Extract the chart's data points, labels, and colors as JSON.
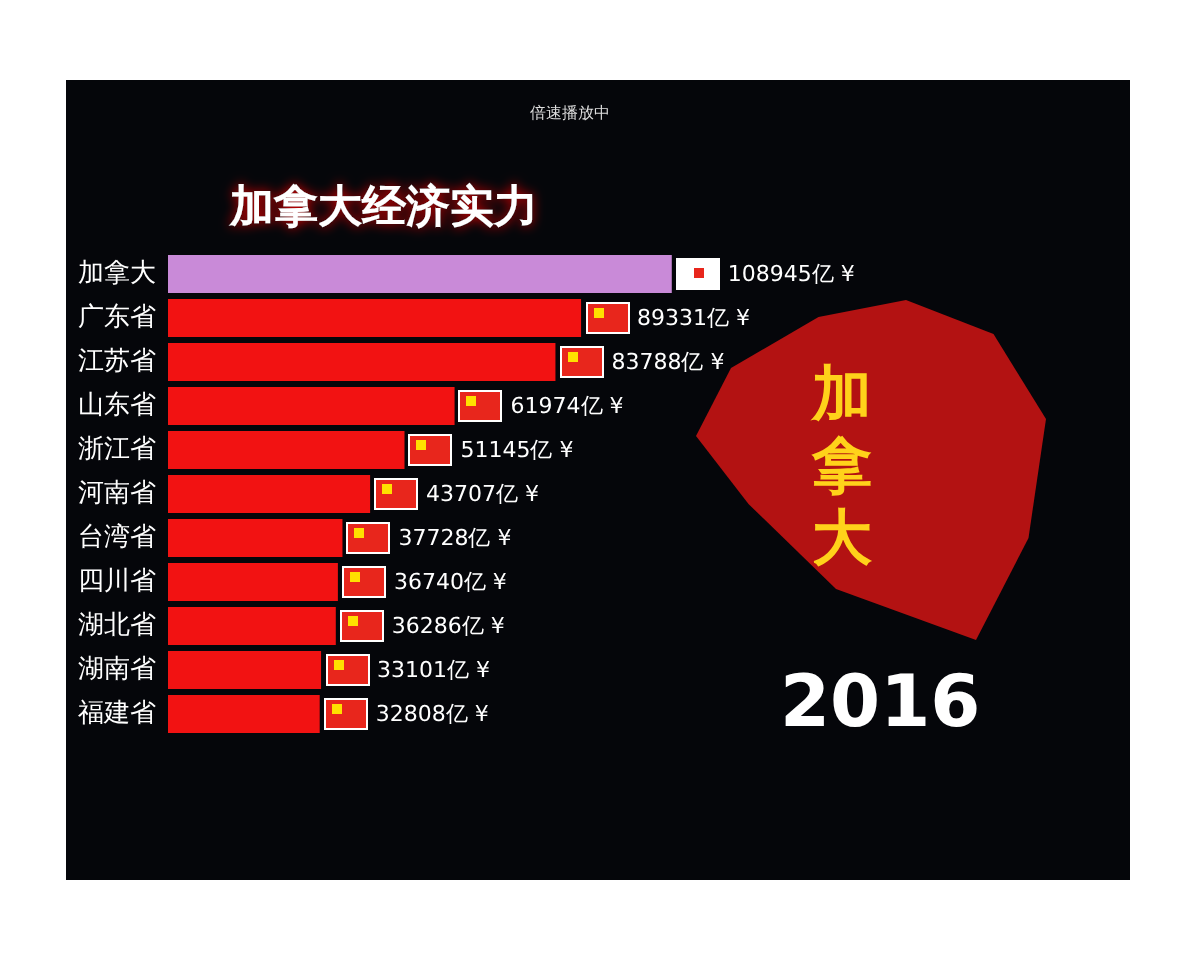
{
  "chart_data": {
    "type": "bar",
    "orientation": "horizontal",
    "title": "加拿大经济实力",
    "categories": [
      "加拿大",
      "广东省",
      "江苏省",
      "山东省",
      "浙江省",
      "河南省",
      "台湾省",
      "四川省",
      "湖北省",
      "湖南省",
      "福建省"
    ],
    "values": [
      108945,
      89331,
      83788,
      61974,
      51145,
      43707,
      37728,
      36740,
      36286,
      33101,
      32808
    ],
    "value_labels": [
      "108945亿 ¥",
      "89331亿 ¥",
      "83788亿 ¥",
      "61974亿 ¥",
      "51145亿 ¥",
      "43707亿 ¥",
      "37728亿 ¥",
      "36740亿 ¥",
      "36286亿 ¥",
      "33101亿 ¥",
      "32808亿 ¥"
    ],
    "colors": [
      "#c98ad8",
      "#f21212",
      "#f21212",
      "#f21212",
      "#f21212",
      "#f21212",
      "#f21212",
      "#f21212",
      "#f21212",
      "#f21212",
      "#f21212"
    ],
    "annotations": [
      "倍速播放中",
      "加拿大",
      "2016"
    ],
    "grid": false
  }
}
